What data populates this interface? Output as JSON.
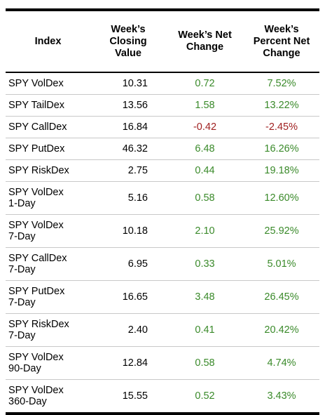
{
  "colors": {
    "positive": "#3a8a2a",
    "negative": "#a02020",
    "rule": "#000000",
    "row_divider": "#c8c8c8"
  },
  "headers": {
    "index": "Index",
    "closing_line1": "Week’s",
    "closing_line2": "Closing",
    "closing_line3": "Value",
    "net_line1": "Week’s Net",
    "net_line2": "Change",
    "pct_line1": "Week’s",
    "pct_line2": "Percent Net",
    "pct_line3": "Change"
  },
  "rows": [
    {
      "name1": "SPY VolDex",
      "name2": "",
      "value": "10.31",
      "net": "0.72",
      "pct": "7.52%",
      "sign": "pos"
    },
    {
      "name1": "SPY TailDex",
      "name2": "",
      "value": "13.56",
      "net": "1.58",
      "pct": "13.22%",
      "sign": "pos"
    },
    {
      "name1": "SPY CallDex",
      "name2": "",
      "value": "16.84",
      "net": "-0.42",
      "pct": "-2.45%",
      "sign": "neg"
    },
    {
      "name1": "SPY PutDex",
      "name2": "",
      "value": "46.32",
      "net": "6.48",
      "pct": "16.26%",
      "sign": "pos"
    },
    {
      "name1": "SPY RiskDex",
      "name2": "",
      "value": "2.75",
      "net": "0.44",
      "pct": "19.18%",
      "sign": "pos"
    },
    {
      "name1": "SPY VolDex",
      "name2": "1-Day",
      "value": "5.16",
      "net": "0.58",
      "pct": "12.60%",
      "sign": "pos"
    },
    {
      "name1": "SPY VolDex",
      "name2": "7-Day",
      "value": "10.18",
      "net": "2.10",
      "pct": "25.92%",
      "sign": "pos"
    },
    {
      "name1": "SPY CallDex",
      "name2": "7-Day",
      "value": "6.95",
      "net": "0.33",
      "pct": "5.01%",
      "sign": "pos"
    },
    {
      "name1": "SPY PutDex",
      "name2": "7-Day",
      "value": "16.65",
      "net": "3.48",
      "pct": "26.45%",
      "sign": "pos"
    },
    {
      "name1": "SPY RiskDex",
      "name2": "7-Day",
      "value": "2.40",
      "net": "0.41",
      "pct": "20.42%",
      "sign": "pos"
    },
    {
      "name1": "SPY VolDex",
      "name2": "90-Day",
      "value": "12.84",
      "net": "0.58",
      "pct": "4.74%",
      "sign": "pos"
    },
    {
      "name1": "SPY VolDex",
      "name2": "360-Day",
      "value": "15.55",
      "net": "0.52",
      "pct": "3.43%",
      "sign": "pos"
    }
  ]
}
